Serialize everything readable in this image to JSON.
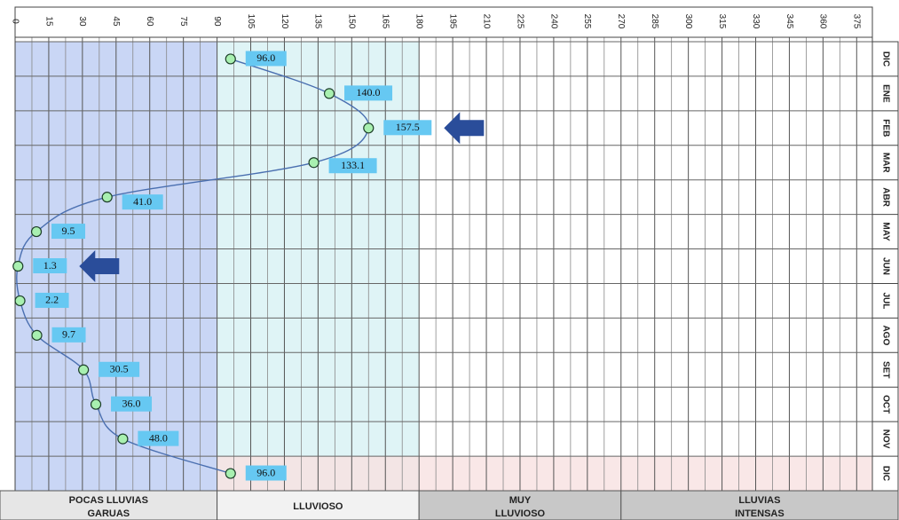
{
  "chart_data": {
    "type": "line",
    "orientation": "horizontal-value-axis",
    "x_ticks": [
      0,
      15,
      30,
      45,
      60,
      75,
      90,
      105,
      120,
      135,
      150,
      165,
      180,
      195,
      210,
      225,
      240,
      255,
      270,
      285,
      300,
      315,
      330,
      345,
      360,
      375
    ],
    "xlim": [
      0,
      382
    ],
    "grid": true,
    "months": [
      "DIC",
      "ENE",
      "FEB",
      "MAR",
      "ABR",
      "MAY",
      "JUN",
      "JUL",
      "AGO",
      "SET",
      "OCT",
      "NOV",
      "DIC"
    ],
    "values": [
      96.0,
      140.0,
      157.5,
      133.1,
      41.0,
      9.5,
      1.3,
      2.2,
      9.7,
      30.5,
      36.0,
      48.0,
      96.0
    ],
    "value_labels": [
      "96.0",
      "140.0",
      "157.5",
      "133.1",
      "41.0",
      "9.5",
      "1.3",
      "2.2",
      "9.7",
      "30.5",
      "36.0",
      "48.0",
      "96.0"
    ],
    "highlight_arrows": [
      {
        "month_index": 2,
        "meaning": "maximum",
        "direction": "left"
      },
      {
        "month_index": 6,
        "meaning": "minimum",
        "direction": "left"
      }
    ],
    "bands": [
      {
        "lines": [
          "POCAS LLUVIAS",
          "GARUAS"
        ],
        "from": 0,
        "to": 90,
        "fill": "#c9d6f5",
        "label_bg": "#e6e6e6"
      },
      {
        "lines": [
          "LLUVIOSO"
        ],
        "from": 90,
        "to": 180,
        "fill": "#dff4f6",
        "label_bg": "#f2f2f2"
      },
      {
        "lines": [
          "MUY",
          "LLUVIOSO"
        ],
        "from": 180,
        "to": 270,
        "fill": "none",
        "label_bg": "#c8c8c8"
      },
      {
        "lines": [
          "LLUVIAS",
          "INTENSAS"
        ],
        "from": 270,
        "to": 382,
        "fill": "none",
        "label_bg": "#c8c8c8"
      }
    ],
    "colors": {
      "line": "#4a6fb0",
      "marker_fill": "#a8f0b0",
      "label_bg": "#66c8f2",
      "arrow": "#2a4d9a",
      "dic_row_highlight": "#f7e1e1"
    }
  }
}
